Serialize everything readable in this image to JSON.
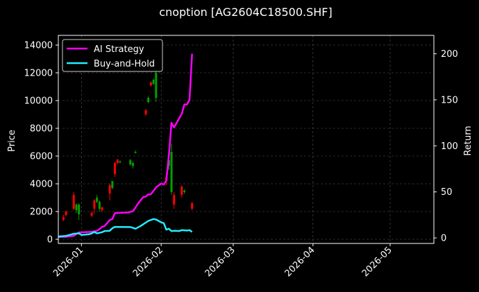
{
  "chart_data": {
    "type": "line",
    "title": "cnoption [AG2604C18500.SHF]",
    "ylabel": "Price",
    "ylabel_right": "Return",
    "xlabel": "",
    "ylim": [
      -300,
      14700
    ],
    "ylim_right": [
      -6,
      220
    ],
    "y_ticks": [
      0,
      2000,
      4000,
      6000,
      8000,
      10000,
      12000,
      14000
    ],
    "y_tick_labels": [
      "0",
      "2000",
      "4000",
      "6000",
      "8000",
      "10000",
      "12000",
      "14000"
    ],
    "y_right_ticks": [
      0,
      50,
      100,
      150,
      200
    ],
    "y_right_tick_labels": [
      "0",
      "50",
      "100",
      "150",
      "200"
    ],
    "x_ticks": [
      "2026-01-01",
      "2026-02-01",
      "2026-03-01",
      "2026-04-01",
      "2026-05-01"
    ],
    "x_tick_labels": [
      "2026-01",
      "2026-02",
      "2026-03",
      "2026-04",
      "2026-05"
    ],
    "xlim": [
      "2025-12-23",
      "2026-05-18"
    ],
    "grid": true,
    "legend_position": "top-left",
    "background": "#000000",
    "candles_up_color": "#00a000",
    "candles_down_color": "#ff0000",
    "candlesticks": [
      {
        "date": "2025-12-25",
        "open": 1600,
        "close": 1400,
        "high": 1750,
        "low": 1300
      },
      {
        "date": "2025-12-26",
        "open": 2000,
        "close": 1750,
        "high": 2100,
        "low": 1650
      },
      {
        "date": "2025-12-29",
        "open": 3200,
        "close": 2200,
        "high": 3400,
        "low": 2100
      },
      {
        "date": "2025-12-30",
        "open": 2100,
        "close": 2500,
        "high": 2600,
        "low": 1900
      },
      {
        "date": "2025-12-31",
        "open": 1800,
        "close": 2500,
        "high": 2600,
        "low": 1400
      },
      {
        "date": "2026-01-05",
        "open": 1900,
        "close": 1700,
        "high": 2000,
        "low": 1600
      },
      {
        "date": "2026-01-06",
        "open": 2800,
        "close": 2200,
        "high": 2900,
        "low": 1800
      },
      {
        "date": "2026-01-07",
        "open": 2700,
        "close": 3000,
        "high": 3200,
        "low": 2600
      },
      {
        "date": "2026-01-08",
        "open": 2200,
        "close": 2700,
        "high": 2800,
        "low": 2000
      },
      {
        "date": "2026-01-09",
        "open": 2300,
        "close": 2100,
        "high": 2350,
        "low": 1950
      },
      {
        "date": "2026-01-12",
        "open": 3900,
        "close": 3300,
        "high": 4000,
        "low": 2800
      },
      {
        "date": "2026-01-13",
        "open": 3700,
        "close": 4200,
        "high": 4200,
        "low": 3600
      },
      {
        "date": "2026-01-14",
        "open": 5500,
        "close": 4700,
        "high": 5600,
        "low": 4500
      },
      {
        "date": "2026-01-15",
        "open": 5750,
        "close": 5500,
        "high": 5800,
        "low": 5400
      },
      {
        "date": "2026-01-16",
        "open": 5600,
        "close": 5600,
        "high": 5700,
        "low": 5500
      },
      {
        "date": "2026-01-20",
        "open": 5400,
        "close": 5700,
        "high": 5800,
        "low": 5300
      },
      {
        "date": "2026-01-21",
        "open": 5300,
        "close": 5500,
        "high": 5600,
        "low": 5100
      },
      {
        "date": "2026-01-22",
        "open": 6300,
        "close": 6300,
        "high": 6400,
        "low": 6200
      },
      {
        "date": "2026-01-26",
        "open": 9300,
        "close": 9000,
        "high": 9400,
        "low": 8900
      },
      {
        "date": "2026-01-27",
        "open": 9900,
        "close": 10200,
        "high": 10300,
        "low": 9800
      },
      {
        "date": "2026-01-28",
        "open": 11300,
        "close": 11100,
        "high": 11400,
        "low": 11000
      },
      {
        "date": "2026-01-29",
        "open": 11200,
        "close": 11500,
        "high": 11600,
        "low": 11100
      },
      {
        "date": "2026-01-30",
        "open": 10200,
        "close": 12000,
        "high": 12400,
        "low": 9900
      },
      {
        "date": "2026-02-03",
        "open": 4500,
        "close": 4200,
        "high": 4800,
        "low": 3900
      },
      {
        "date": "2026-02-04",
        "open": 5300,
        "close": 5700,
        "high": 6000,
        "low": 5000
      },
      {
        "date": "2026-02-05",
        "open": 3400,
        "close": 6300,
        "high": 6900,
        "low": 3200
      },
      {
        "date": "2026-02-06",
        "open": 3200,
        "close": 2500,
        "high": 3400,
        "low": 2200
      },
      {
        "date": "2026-02-09",
        "open": 3800,
        "close": 3200,
        "high": 3900,
        "low": 3000
      },
      {
        "date": "2026-02-10",
        "open": 3400,
        "close": 3500,
        "high": 3600,
        "low": 3300
      },
      {
        "date": "2026-02-13",
        "open": 2600,
        "close": 2200,
        "high": 2700,
        "low": 2100
      }
    ],
    "series": [
      {
        "name": "AI Strategy",
        "color": "#ff00ff",
        "x": [
          "2025-12-23",
          "2025-12-26",
          "2025-12-29",
          "2025-12-31",
          "2026-01-02",
          "2026-01-05",
          "2026-01-07",
          "2026-01-08",
          "2026-01-09",
          "2026-01-10",
          "2026-01-12",
          "2026-01-13",
          "2026-01-14",
          "2026-01-16",
          "2026-01-19",
          "2026-01-21",
          "2026-01-22",
          "2026-01-23",
          "2026-01-25",
          "2026-01-26",
          "2026-01-27",
          "2026-01-28",
          "2026-01-29",
          "2026-01-30",
          "2026-02-01",
          "2026-02-02",
          "2026-02-03",
          "2026-02-04",
          "2026-02-05",
          "2026-02-06",
          "2026-02-07",
          "2026-02-09",
          "2026-02-10",
          "2026-02-11",
          "2026-02-12",
          "2026-02-13"
        ],
        "values": [
          1.0,
          1.2,
          2.3,
          6.0,
          6.3,
          6.6,
          7.8,
          9.5,
          12.0,
          13.0,
          19.5,
          20.5,
          27.0,
          27.2,
          27.5,
          29.0,
          33.0,
          37.5,
          44.3,
          45.0,
          47.3,
          47.5,
          51.0,
          55.0,
          59.0,
          58.0,
          62.0,
          90.0,
          125.0,
          120.0,
          125.0,
          135.0,
          145.0,
          145.0,
          150.0,
          200.0
        ]
      },
      {
        "name": "Buy-and-Hold",
        "color": "#22eeff",
        "x": [
          "2025-12-23",
          "2025-12-26",
          "2025-12-27",
          "2025-12-29",
          "2025-12-31",
          "2026-01-01",
          "2026-01-04",
          "2026-01-05",
          "2026-01-06",
          "2026-01-07",
          "2026-01-09",
          "2026-01-10",
          "2026-01-12",
          "2026-01-13",
          "2026-01-14",
          "2026-01-17",
          "2026-01-20",
          "2026-01-21",
          "2026-01-22",
          "2026-01-24",
          "2026-01-27",
          "2026-01-29",
          "2026-01-30",
          "2026-02-01",
          "2026-02-02",
          "2026-02-03",
          "2026-02-04",
          "2026-02-05",
          "2026-02-06",
          "2026-02-08",
          "2026-02-09",
          "2026-02-11",
          "2026-02-12",
          "2026-02-13"
        ],
        "values": [
          1.5,
          2.2,
          3.0,
          4.5,
          5.0,
          3.3,
          4.0,
          5.0,
          6.5,
          5.0,
          6.2,
          7.5,
          7.8,
          10.5,
          12.0,
          11.9,
          11.8,
          11.0,
          10.0,
          13.0,
          18.5,
          20.5,
          20.0,
          17.0,
          16.0,
          9.0,
          10.0,
          7.5,
          7.8,
          7.5,
          8.5,
          8.0,
          8.5,
          6.5
        ]
      }
    ]
  }
}
